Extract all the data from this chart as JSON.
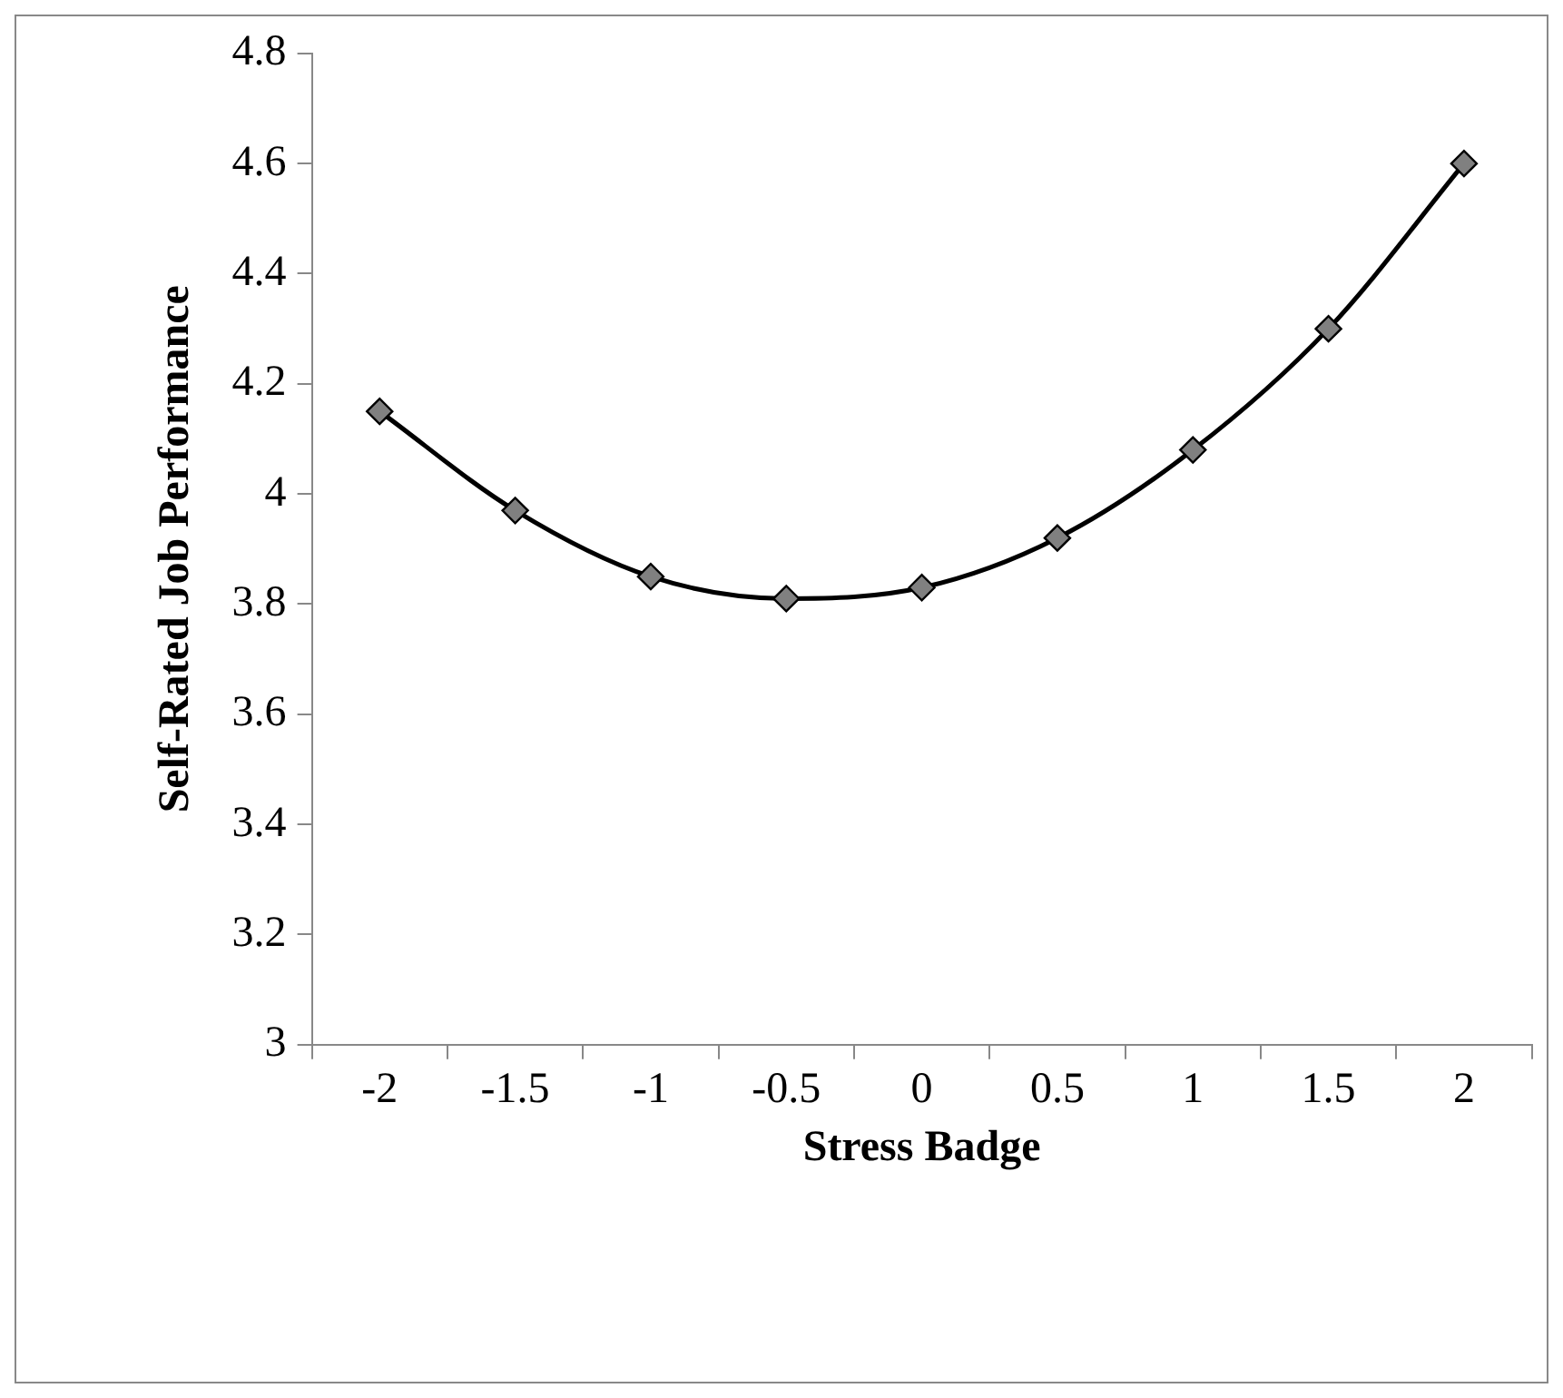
{
  "chart_data": {
    "type": "line",
    "xlabel": "Stress Badge",
    "ylabel": "Self-Rated Job Performance",
    "categories": [
      "-2",
      "-1.5",
      "-1",
      "-0.5",
      "0",
      "0.5",
      "1",
      "1.5",
      "2"
    ],
    "series": [
      {
        "color": "#000000",
        "values": [
          4.15,
          3.97,
          3.85,
          3.81,
          3.83,
          3.92,
          4.08,
          4.3,
          4.6
        ]
      }
    ],
    "ylim": [
      3,
      4.8
    ],
    "yticks": [
      3,
      3.2,
      3.4,
      3.6,
      3.8,
      4,
      4.2,
      4.4,
      4.6,
      4.8
    ],
    "grid": false,
    "legend": false,
    "marker": "diamond",
    "line_style": "solid"
  }
}
